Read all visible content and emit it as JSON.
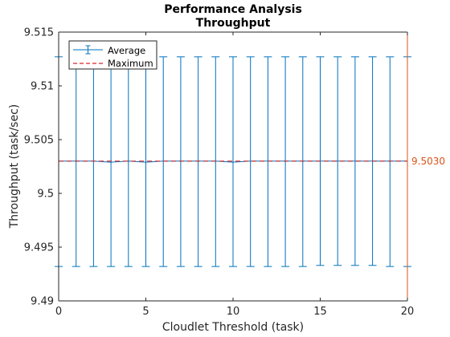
{
  "chart_data": {
    "type": "line",
    "title": "Performance Analysis",
    "subtitle": "Throughput",
    "xlabel": "Cloudlet Threshold (task)",
    "ylabel": "Throughput (task/sec)",
    "xlim": [
      0,
      20
    ],
    "ylim": [
      9.49,
      9.515
    ],
    "x_ticks": [
      0,
      5,
      10,
      15,
      20
    ],
    "x_tick_labels": [
      "0",
      "5",
      "10",
      "15",
      "20"
    ],
    "y_ticks": [
      9.49,
      9.495,
      9.5,
      9.505,
      9.51,
      9.515
    ],
    "y_tick_labels": [
      "9.49",
      "9.495",
      "9.5",
      "9.505",
      "9.51",
      "9.515"
    ],
    "grid": false,
    "legend_position": "top-left",
    "series": [
      {
        "name": "Average",
        "color": "#0072BD",
        "style": "errorbar",
        "x": [
          0,
          1,
          2,
          3,
          4,
          5,
          6,
          7,
          8,
          9,
          10,
          11,
          12,
          13,
          14,
          15,
          16,
          17,
          18,
          19,
          20
        ],
        "values": [
          9.503,
          9.503,
          9.503,
          9.5029,
          9.503,
          9.5029,
          9.503,
          9.503,
          9.503,
          9.503,
          9.5029,
          9.503,
          9.503,
          9.503,
          9.503,
          9.503,
          9.503,
          9.503,
          9.503,
          9.503,
          9.503
        ],
        "upper": [
          9.5127,
          9.5127,
          9.5127,
          9.5127,
          9.5127,
          9.5127,
          9.5127,
          9.5127,
          9.5127,
          9.5127,
          9.5127,
          9.5127,
          9.5127,
          9.5127,
          9.5127,
          9.5127,
          9.5127,
          9.5127,
          9.5127,
          9.5127,
          9.5127
        ],
        "lower": [
          9.4932,
          9.4932,
          9.4932,
          9.4932,
          9.4932,
          9.4932,
          9.4932,
          9.4932,
          9.4932,
          9.4932,
          9.4932,
          9.4932,
          9.4932,
          9.4932,
          9.4932,
          9.4933,
          9.4933,
          9.4933,
          9.4933,
          9.4932,
          9.4932
        ]
      },
      {
        "name": "Maximum",
        "color": "#D62728",
        "style": "dashed",
        "x": [
          0,
          20
        ],
        "values": [
          9.503,
          9.503
        ]
      }
    ],
    "annotations": [
      {
        "text": "9.5030",
        "color": "#D95319"
      }
    ],
    "right_axis_color": "#D95319"
  }
}
